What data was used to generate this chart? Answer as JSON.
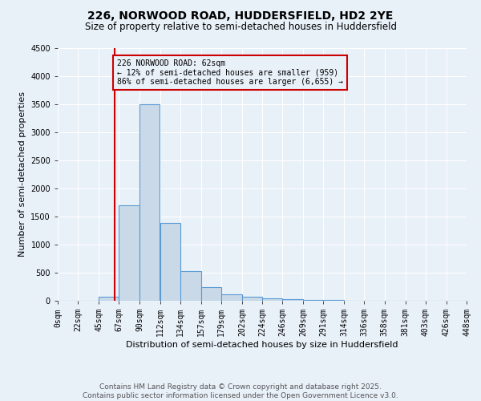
{
  "title1": "226, NORWOOD ROAD, HUDDERSFIELD, HD2 2YE",
  "title2": "Size of property relative to semi-detached houses in Huddersfield",
  "xlabel": "Distribution of semi-detached houses by size in Huddersfield",
  "ylabel": "Number of semi-detached properties",
  "bin_labels": [
    "0sqm",
    "22sqm",
    "45sqm",
    "67sqm",
    "90sqm",
    "112sqm",
    "134sqm",
    "157sqm",
    "179sqm",
    "202sqm",
    "224sqm",
    "246sqm",
    "269sqm",
    "291sqm",
    "314sqm",
    "336sqm",
    "358sqm",
    "381sqm",
    "403sqm",
    "426sqm",
    "448sqm"
  ],
  "bin_edges": [
    0,
    22,
    45,
    67,
    90,
    112,
    134,
    157,
    179,
    202,
    224,
    246,
    269,
    291,
    314,
    336,
    358,
    381,
    403,
    426,
    448
  ],
  "bar_heights": [
    0,
    0,
    75,
    1700,
    3500,
    1380,
    530,
    240,
    110,
    65,
    40,
    30,
    20,
    15,
    5,
    3,
    2,
    1,
    0,
    0
  ],
  "bar_color": "#c9d9e8",
  "bar_edge_color": "#5b9bd5",
  "property_size": 62,
  "vline_color": "#cc0000",
  "annotation_title": "226 NORWOOD ROAD: 62sqm",
  "annotation_line1": "← 12% of semi-detached houses are smaller (959)",
  "annotation_line2": "86% of semi-detached houses are larger (6,655) →",
  "annotation_box_color": "#cc0000",
  "ylim": [
    0,
    4500
  ],
  "footnote1": "Contains HM Land Registry data © Crown copyright and database right 2025.",
  "footnote2": "Contains public sector information licensed under the Open Government Licence v3.0.",
  "bg_color": "#e8f0f8",
  "grid_color": "#ffffff",
  "title1_fontsize": 10,
  "title2_fontsize": 8.5,
  "axis_label_fontsize": 8,
  "tick_fontsize": 7,
  "footnote_fontsize": 6.5
}
